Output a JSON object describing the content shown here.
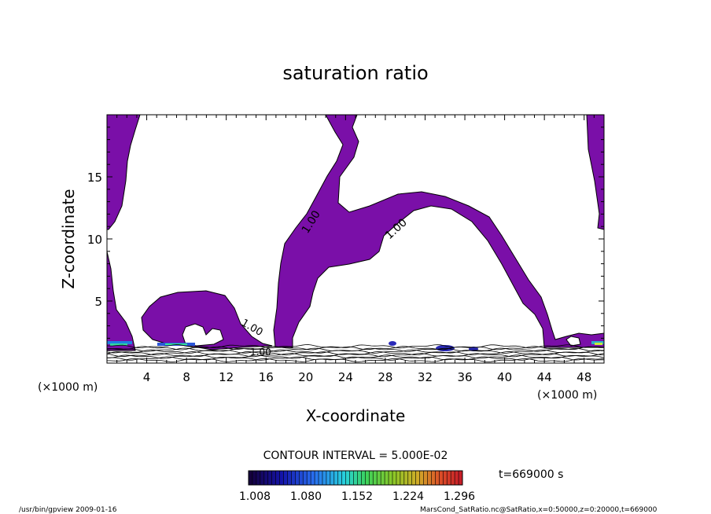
{
  "chart_data": {
    "type": "contour",
    "title": "saturation ratio",
    "xlabel": "X-coordinate",
    "ylabel": "Z-coordinate",
    "x_unit_left": "(×1000 m)",
    "x_unit_right": "(×1000 m)",
    "xlim": [
      0,
      50
    ],
    "ylim": [
      0,
      20
    ],
    "x_ticks": [
      4,
      8,
      12,
      16,
      20,
      24,
      28,
      32,
      36,
      40,
      44,
      48
    ],
    "y_ticks": [
      5,
      10,
      15
    ],
    "fill_color": "#7a0fa8",
    "region_color_above_one": "#7a0fa8",
    "contour_labels": [
      "1.00",
      "1.00",
      "1.00",
      "1.00"
    ],
    "contour_interval_text": "CONTOUR INTERVAL = 5.000E-02",
    "time_text": "t=669000 s",
    "colorbar": {
      "labels": [
        "1.008",
        "1.080",
        "1.152",
        "1.224",
        "1.296"
      ],
      "min": 1.008,
      "max": 1.296,
      "segments": 55
    },
    "footer_left": "/usr/bin/gpview 2009-01-16",
    "footer_right": "MarsCond_SatRatio.nc@SatRatio,x=0:50000,z=0:20000,t=669000"
  }
}
